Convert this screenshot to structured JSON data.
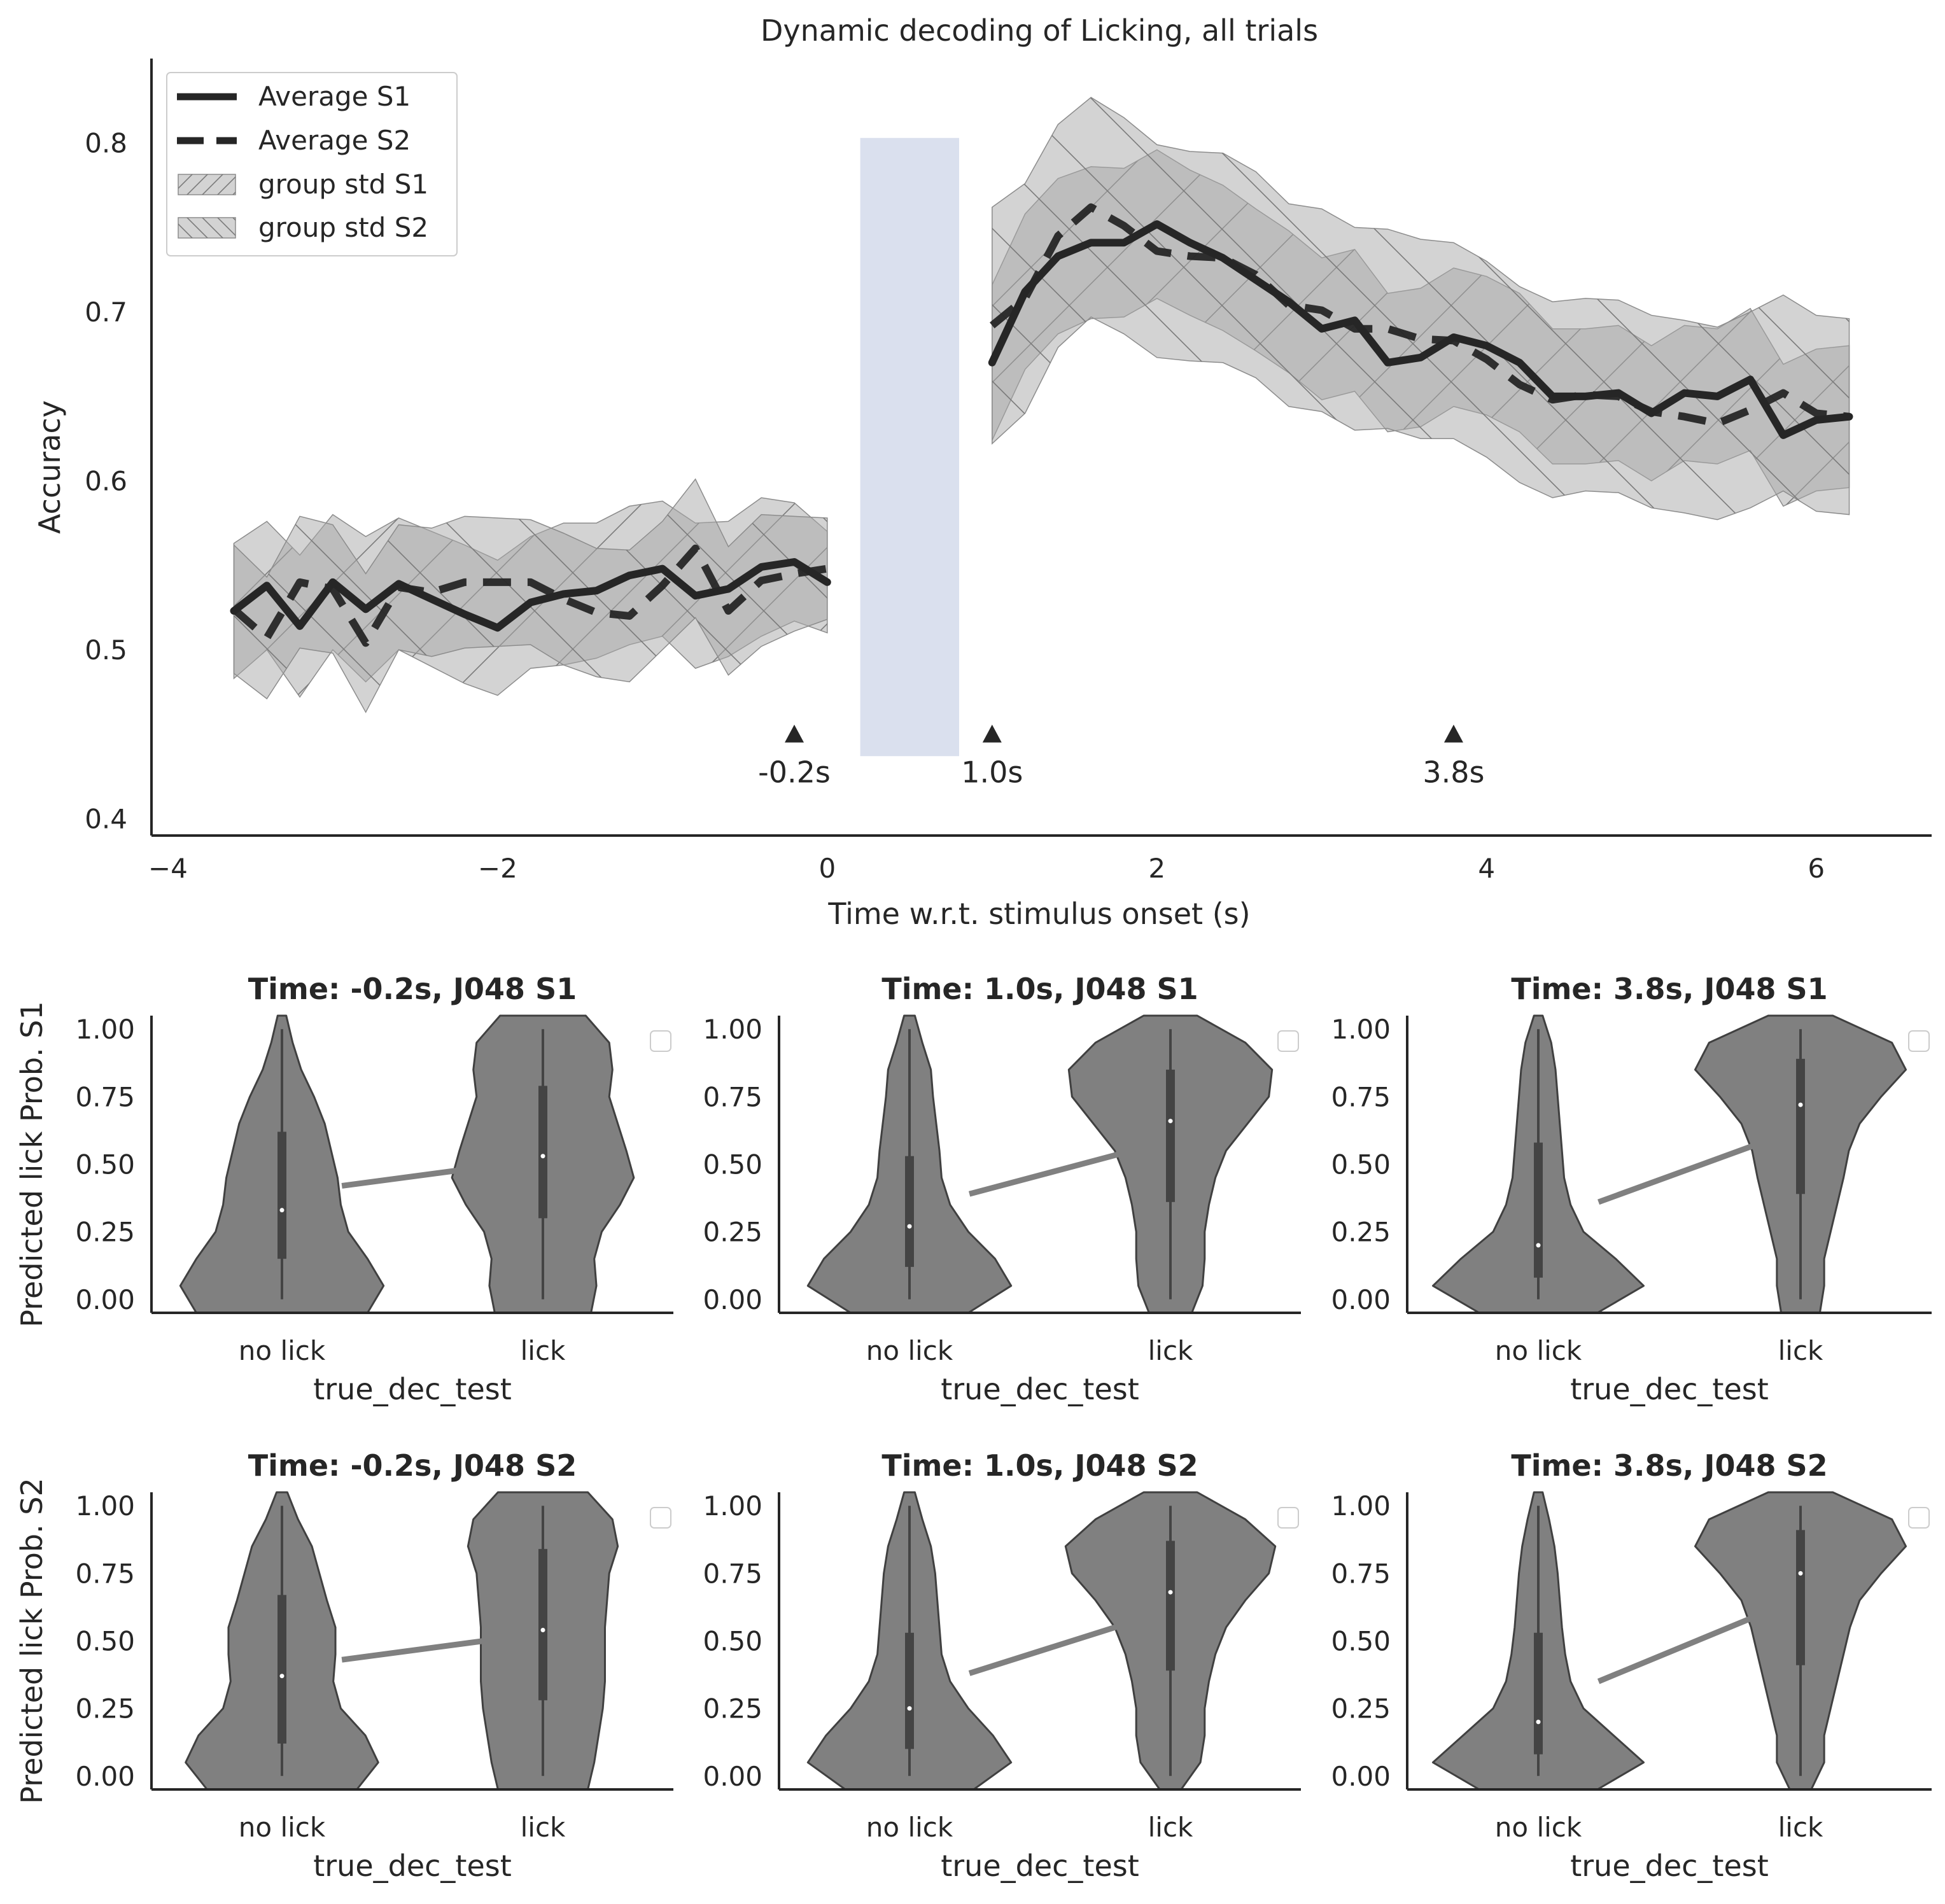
{
  "chart_data": [
    {
      "type": "line",
      "title": "Dynamic decoding of Licking, all trials",
      "xlabel": "Time w.r.t. stimulus onset (s)",
      "ylabel": "Accuracy",
      "xlim": [
        -4.1,
        6.7
      ],
      "ylim": [
        0.39,
        0.85
      ],
      "xticks": [
        -4,
        -2,
        0,
        2,
        4,
        6
      ],
      "xtick_labels": [
        "−4",
        "−2",
        "0",
        "2",
        "4",
        "6"
      ],
      "yticks": [
        0.4,
        0.5,
        0.6,
        0.7,
        0.8
      ],
      "ytick_labels": [
        "0.4",
        "0.5",
        "0.6",
        "0.7",
        "0.8"
      ],
      "grid": false,
      "legend_position": "top-left",
      "legend": [
        {
          "label": "Average S1",
          "style": "solid"
        },
        {
          "label": "Average S2",
          "style": "dashed"
        },
        {
          "label": "group std S1",
          "style": "band-hatch-diag-up"
        },
        {
          "label": "group std S2",
          "style": "band-hatch-diag-down"
        }
      ],
      "stimulus_window": {
        "x": [
          0.2,
          0.8
        ],
        "y": [
          0.437,
          0.803
        ],
        "color": "#dae0ee"
      },
      "annotations": [
        {
          "x": -0.2,
          "y": 0.45,
          "label": "-0.2s"
        },
        {
          "x": 1.0,
          "y": 0.45,
          "label": "1.0s"
        },
        {
          "x": 3.8,
          "y": 0.45,
          "label": "3.8s"
        }
      ],
      "series": [
        {
          "name": "Average S1",
          "segments": [
            {
              "x": [
                -3.6,
                -3.4,
                -3.2,
                -3.0,
                -2.8,
                -2.6,
                -2.4,
                -2.2,
                -2.0,
                -1.8,
                -1.6,
                -1.4,
                -1.2,
                -1.0,
                -0.8,
                -0.6,
                -0.4,
                -0.2,
                0.0
              ],
              "y": [
                0.523,
                0.538,
                0.514,
                0.54,
                0.524,
                0.539,
                0.53,
                0.521,
                0.513,
                0.528,
                0.533,
                0.535,
                0.544,
                0.548,
                0.532,
                0.536,
                0.549,
                0.552,
                0.54
              ],
              "std": [
                0.04,
                0.038,
                0.042,
                0.04,
                0.043,
                0.039,
                0.04,
                0.041,
                0.04,
                0.039,
                0.042,
                0.04,
                0.041,
                0.04,
                0.043,
                0.04,
                0.041,
                0.035,
                0.03
              ]
            },
            {
              "x": [
                1.0,
                1.2,
                1.4,
                1.6,
                1.8,
                2.0,
                2.2,
                2.4,
                2.6,
                2.8,
                3.0,
                3.2,
                3.4,
                3.6,
                3.8,
                4.0,
                4.2,
                4.4,
                4.6,
                4.8,
                5.0,
                5.2,
                5.4,
                5.6,
                5.8,
                6.0,
                6.2
              ],
              "y": [
                0.67,
                0.712,
                0.733,
                0.741,
                0.741,
                0.752,
                0.741,
                0.732,
                0.719,
                0.706,
                0.69,
                0.695,
                0.67,
                0.673,
                0.685,
                0.68,
                0.67,
                0.65,
                0.65,
                0.652,
                0.64,
                0.652,
                0.65,
                0.66,
                0.627,
                0.636,
                0.638
              ],
              "std": [
                0.046,
                0.046,
                0.046,
                0.045,
                0.044,
                0.044,
                0.043,
                0.043,
                0.042,
                0.042,
                0.042,
                0.042,
                0.041,
                0.041,
                0.041,
                0.041,
                0.041,
                0.04,
                0.04,
                0.04,
                0.04,
                0.04,
                0.04,
                0.042,
                0.042,
                0.042,
                0.042
              ]
            }
          ]
        },
        {
          "name": "Average S2",
          "segments": [
            {
              "x": [
                -3.6,
                -3.4,
                -3.2,
                -3.0,
                -2.8,
                -2.6,
                -2.4,
                -2.2,
                -2.0,
                -1.8,
                -1.6,
                -1.4,
                -1.2,
                -1.0,
                -0.8,
                -0.6,
                -0.4,
                -0.2,
                0.0
              ],
              "y": [
                0.524,
                0.507,
                0.54,
                0.536,
                0.504,
                0.537,
                0.534,
                0.54,
                0.54,
                0.54,
                0.53,
                0.522,
                0.52,
                0.538,
                0.56,
                0.523,
                0.541,
                0.545,
                0.548
              ],
              "std": [
                0.038,
                0.036,
                0.039,
                0.038,
                0.041,
                0.037,
                0.038,
                0.039,
                0.038,
                0.037,
                0.039,
                0.038,
                0.039,
                0.038,
                0.041,
                0.038,
                0.039,
                0.034,
                0.03
              ]
            },
            {
              "x": [
                1.0,
                1.2,
                1.4,
                1.6,
                1.8,
                2.0,
                2.2,
                2.4,
                2.6,
                2.8,
                3.0,
                3.2,
                3.4,
                3.6,
                3.8,
                4.0,
                4.2,
                4.4,
                4.6,
                4.8,
                5.0,
                5.2,
                5.4,
                5.6,
                5.8,
                6.0,
                6.2
              ],
              "y": [
                0.692,
                0.708,
                0.745,
                0.762,
                0.751,
                0.736,
                0.733,
                0.732,
                0.722,
                0.704,
                0.701,
                0.69,
                0.69,
                0.684,
                0.683,
                0.672,
                0.657,
                0.648,
                0.651,
                0.65,
                0.641,
                0.638,
                0.634,
                0.642,
                0.652,
                0.64,
                0.638
              ],
              "std": [
                0.07,
                0.068,
                0.066,
                0.065,
                0.064,
                0.063,
                0.062,
                0.062,
                0.061,
                0.06,
                0.06,
                0.06,
                0.059,
                0.059,
                0.058,
                0.058,
                0.058,
                0.058,
                0.057,
                0.057,
                0.057,
                0.057,
                0.057,
                0.058,
                0.058,
                0.058,
                0.058
              ]
            }
          ]
        }
      ]
    },
    {
      "type": "violin",
      "title": "Time: -0.2s, J048 S1",
      "xlabel": "true_dec_test",
      "ylabel": "Predicted lick Prob. S1",
      "categories": [
        "no lick",
        "lick"
      ],
      "ylim": [
        -0.05,
        1.05
      ],
      "yticks": [
        0,
        0.25,
        0.5,
        0.75,
        1.0
      ],
      "ytick_labels": [
        "0.00",
        "0.25",
        "0.50",
        "0.75",
        "1.00"
      ],
      "means": [
        0.42,
        0.5
      ],
      "medians": [
        0.33,
        0.53
      ],
      "q1": [
        0.15,
        0.3
      ],
      "q3": [
        0.62,
        0.79
      ],
      "density": [
        {
          "y": [
            -0.05,
            0.05,
            0.15,
            0.25,
            0.35,
            0.45,
            0.55,
            0.65,
            0.75,
            0.85,
            0.95,
            1.05
          ],
          "w": [
            0.8,
            0.95,
            0.8,
            0.62,
            0.55,
            0.52,
            0.46,
            0.4,
            0.3,
            0.18,
            0.1,
            0.04
          ]
        },
        {
          "y": [
            -0.05,
            0.05,
            0.15,
            0.25,
            0.35,
            0.45,
            0.55,
            0.65,
            0.75,
            0.85,
            0.95,
            1.05
          ],
          "w": [
            0.45,
            0.5,
            0.48,
            0.55,
            0.72,
            0.85,
            0.78,
            0.7,
            0.62,
            0.65,
            0.62,
            0.4
          ]
        }
      ]
    },
    {
      "type": "violin",
      "title": "Time: 1.0s, J048 S1",
      "xlabel": "true_dec_test",
      "ylabel": "",
      "categories": [
        "no lick",
        "lick"
      ],
      "ylim": [
        -0.05,
        1.05
      ],
      "yticks": [
        0,
        0.25,
        0.5,
        0.75,
        1.0
      ],
      "ytick_labels": [
        "0.00",
        "0.25",
        "0.50",
        "0.75",
        "1.00"
      ],
      "means": [
        0.39,
        0.55
      ],
      "medians": [
        0.27,
        0.66
      ],
      "q1": [
        0.12,
        0.36
      ],
      "q3": [
        0.53,
        0.85
      ],
      "density": [
        {
          "y": [
            -0.05,
            0.05,
            0.15,
            0.25,
            0.35,
            0.45,
            0.55,
            0.65,
            0.75,
            0.85,
            0.95,
            1.05
          ],
          "w": [
            0.55,
            0.95,
            0.8,
            0.55,
            0.38,
            0.3,
            0.28,
            0.25,
            0.22,
            0.2,
            0.12,
            0.05
          ]
        },
        {
          "y": [
            -0.05,
            0.05,
            0.15,
            0.25,
            0.35,
            0.45,
            0.55,
            0.65,
            0.75,
            0.85,
            0.95,
            1.05
          ],
          "w": [
            0.2,
            0.3,
            0.32,
            0.32,
            0.36,
            0.42,
            0.52,
            0.72,
            0.92,
            0.95,
            0.7,
            0.25
          ]
        }
      ]
    },
    {
      "type": "violin",
      "title": "Time: 3.8s, J048 S1",
      "xlabel": "true_dec_test",
      "ylabel": "",
      "categories": [
        "no lick",
        "lick"
      ],
      "ylim": [
        -0.05,
        1.05
      ],
      "yticks": [
        0,
        0.25,
        0.5,
        0.75,
        1.0
      ],
      "ytick_labels": [
        "0.00",
        "0.25",
        "0.50",
        "0.75",
        "1.00"
      ],
      "means": [
        0.36,
        0.58
      ],
      "medians": [
        0.2,
        0.72
      ],
      "q1": [
        0.08,
        0.39
      ],
      "q3": [
        0.58,
        0.89
      ],
      "density": [
        {
          "y": [
            -0.05,
            0.05,
            0.15,
            0.25,
            0.35,
            0.45,
            0.55,
            0.65,
            0.75,
            0.85,
            0.95,
            1.05
          ],
          "w": [
            0.55,
            0.98,
            0.72,
            0.42,
            0.3,
            0.24,
            0.22,
            0.2,
            0.18,
            0.16,
            0.12,
            0.04
          ]
        },
        {
          "y": [
            -0.05,
            0.05,
            0.15,
            0.25,
            0.35,
            0.45,
            0.55,
            0.65,
            0.75,
            0.85,
            0.95,
            1.05
          ],
          "w": [
            0.18,
            0.22,
            0.22,
            0.28,
            0.34,
            0.4,
            0.45,
            0.55,
            0.75,
            0.98,
            0.85,
            0.3
          ]
        }
      ]
    },
    {
      "type": "violin",
      "title": "Time: -0.2s, J048 S2",
      "xlabel": "true_dec_test",
      "ylabel": "Predicted lick Prob. S2",
      "categories": [
        "no lick",
        "lick"
      ],
      "ylim": [
        -0.05,
        1.05
      ],
      "yticks": [
        0,
        0.25,
        0.5,
        0.75,
        1.0
      ],
      "ytick_labels": [
        "0.00",
        "0.25",
        "0.50",
        "0.75",
        "1.00"
      ],
      "means": [
        0.43,
        0.51
      ],
      "medians": [
        0.37,
        0.54
      ],
      "q1": [
        0.12,
        0.28
      ],
      "q3": [
        0.67,
        0.84
      ],
      "density": [
        {
          "y": [
            -0.05,
            0.05,
            0.15,
            0.25,
            0.35,
            0.45,
            0.55,
            0.65,
            0.75,
            0.85,
            0.95,
            1.05
          ],
          "w": [
            0.7,
            0.9,
            0.78,
            0.55,
            0.48,
            0.5,
            0.5,
            0.42,
            0.35,
            0.28,
            0.15,
            0.05
          ]
        },
        {
          "y": [
            -0.05,
            0.05,
            0.15,
            0.25,
            0.35,
            0.45,
            0.55,
            0.65,
            0.75,
            0.85,
            0.95,
            1.05
          ],
          "w": [
            0.42,
            0.48,
            0.52,
            0.56,
            0.58,
            0.58,
            0.58,
            0.6,
            0.62,
            0.7,
            0.65,
            0.42
          ]
        }
      ]
    },
    {
      "type": "violin",
      "title": "Time: 1.0s, J048 S2",
      "xlabel": "true_dec_test",
      "ylabel": "",
      "categories": [
        "no lick",
        "lick"
      ],
      "ylim": [
        -0.05,
        1.05
      ],
      "yticks": [
        0,
        0.25,
        0.5,
        0.75,
        1.0
      ],
      "ytick_labels": [
        "0.00",
        "0.25",
        "0.50",
        "0.75",
        "1.00"
      ],
      "means": [
        0.38,
        0.57
      ],
      "medians": [
        0.25,
        0.68
      ],
      "q1": [
        0.1,
        0.39
      ],
      "q3": [
        0.53,
        0.87
      ],
      "density": [
        {
          "y": [
            -0.05,
            0.05,
            0.15,
            0.25,
            0.35,
            0.45,
            0.55,
            0.65,
            0.75,
            0.85,
            0.95,
            1.05
          ],
          "w": [
            0.6,
            0.95,
            0.78,
            0.55,
            0.38,
            0.3,
            0.28,
            0.26,
            0.24,
            0.2,
            0.12,
            0.05
          ]
        },
        {
          "y": [
            -0.05,
            0.05,
            0.15,
            0.25,
            0.35,
            0.45,
            0.55,
            0.65,
            0.75,
            0.85,
            0.95,
            1.05
          ],
          "w": [
            0.1,
            0.28,
            0.32,
            0.32,
            0.36,
            0.42,
            0.52,
            0.7,
            0.92,
            0.98,
            0.7,
            0.25
          ]
        }
      ]
    },
    {
      "type": "violin",
      "title": "Time: 3.8s, J048 S2",
      "xlabel": "true_dec_test",
      "ylabel": "",
      "categories": [
        "no lick",
        "lick"
      ],
      "ylim": [
        -0.05,
        1.05
      ],
      "yticks": [
        0,
        0.25,
        0.5,
        0.75,
        1.0
      ],
      "ytick_labels": [
        "0.00",
        "0.25",
        "0.50",
        "0.75",
        "1.00"
      ],
      "means": [
        0.35,
        0.6
      ],
      "medians": [
        0.2,
        0.75
      ],
      "q1": [
        0.08,
        0.41
      ],
      "q3": [
        0.53,
        0.91
      ],
      "density": [
        {
          "y": [
            -0.05,
            0.05,
            0.15,
            0.25,
            0.35,
            0.45,
            0.55,
            0.65,
            0.75,
            0.85,
            0.95,
            1.05
          ],
          "w": [
            0.55,
            0.98,
            0.7,
            0.42,
            0.3,
            0.25,
            0.22,
            0.2,
            0.18,
            0.15,
            0.1,
            0.04
          ]
        },
        {
          "y": [
            -0.05,
            0.05,
            0.15,
            0.25,
            0.35,
            0.45,
            0.55,
            0.65,
            0.75,
            0.85,
            0.95,
            1.05
          ],
          "w": [
            0.1,
            0.22,
            0.22,
            0.28,
            0.34,
            0.4,
            0.46,
            0.55,
            0.75,
            0.98,
            0.85,
            0.3
          ]
        }
      ]
    }
  ]
}
